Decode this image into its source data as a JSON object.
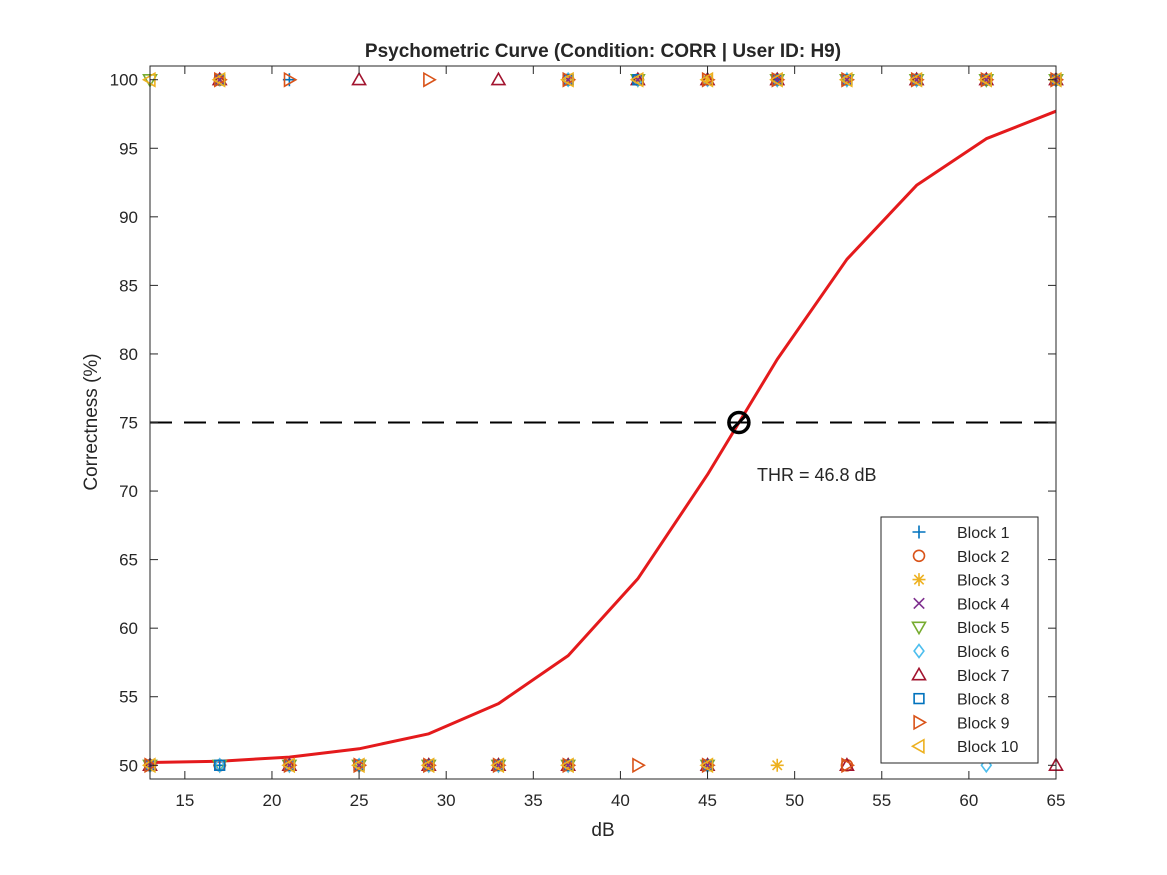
{
  "chart_data": {
    "type": "line",
    "title": "Psychometric Curve (Condition: CORR | User ID: H9)",
    "xlabel": "dB",
    "ylabel": "Correctness (%)",
    "xlim": [
      13,
      65
    ],
    "ylim": [
      49,
      101
    ],
    "xticks": [
      15,
      20,
      25,
      30,
      35,
      40,
      45,
      50,
      55,
      60,
      65
    ],
    "yticks": [
      50,
      55,
      60,
      65,
      70,
      75,
      80,
      85,
      90,
      95,
      100
    ],
    "grid": false,
    "legend_position": "bottom-right",
    "fit_curve": {
      "color": "#e41a1c",
      "x": [
        13,
        17,
        21,
        25,
        29,
        33,
        37,
        41,
        45,
        49,
        53,
        57,
        61,
        65
      ],
      "y": [
        50.2,
        50.3,
        50.6,
        51.2,
        52.3,
        54.5,
        58.0,
        63.6,
        71.2,
        79.6,
        86.9,
        92.3,
        95.7,
        97.7
      ]
    },
    "threshold": {
      "level": 75,
      "x": 46.8,
      "label": "THR = 46.8 dB"
    },
    "series": [
      {
        "name": "Block 1",
        "marker": "plus",
        "color": "#0072bd",
        "points": [
          [
            13,
            50
          ],
          [
            17,
            100
          ],
          [
            17,
            50
          ],
          [
            21,
            100
          ],
          [
            21,
            50
          ],
          [
            25,
            50
          ],
          [
            29,
            50
          ],
          [
            33,
            50
          ],
          [
            37,
            100
          ],
          [
            37,
            50
          ],
          [
            41,
            100
          ],
          [
            45,
            50
          ],
          [
            49,
            100
          ],
          [
            53,
            100
          ],
          [
            57,
            100
          ],
          [
            61,
            100
          ],
          [
            65,
            100
          ]
        ]
      },
      {
        "name": "Block 2",
        "marker": "circle",
        "color": "#d95319",
        "points": [
          [
            13,
            50
          ],
          [
            17,
            100
          ],
          [
            17,
            50
          ],
          [
            21,
            50
          ],
          [
            25,
            50
          ],
          [
            29,
            50
          ],
          [
            33,
            50
          ],
          [
            37,
            100
          ],
          [
            37,
            50
          ],
          [
            41,
            100
          ],
          [
            45,
            50
          ],
          [
            49,
            100
          ],
          [
            53,
            50
          ],
          [
            57,
            100
          ],
          [
            61,
            100
          ],
          [
            65,
            100
          ]
        ]
      },
      {
        "name": "Block 3",
        "marker": "asterisk",
        "color": "#edb120",
        "points": [
          [
            13,
            50
          ],
          [
            17,
            100
          ],
          [
            21,
            50
          ],
          [
            25,
            50
          ],
          [
            29,
            50
          ],
          [
            33,
            50
          ],
          [
            37,
            100
          ],
          [
            37,
            50
          ],
          [
            41,
            100
          ],
          [
            45,
            100
          ],
          [
            45,
            50
          ],
          [
            49,
            50
          ],
          [
            53,
            100
          ],
          [
            57,
            100
          ],
          [
            61,
            100
          ],
          [
            65,
            100
          ]
        ]
      },
      {
        "name": "Block 4",
        "marker": "x",
        "color": "#7e2f8e",
        "points": [
          [
            13,
            50
          ],
          [
            17,
            100
          ],
          [
            21,
            50
          ],
          [
            25,
            50
          ],
          [
            29,
            50
          ],
          [
            33,
            50
          ],
          [
            37,
            100
          ],
          [
            37,
            50
          ],
          [
            41,
            100
          ],
          [
            45,
            50
          ],
          [
            49,
            100
          ],
          [
            53,
            100
          ],
          [
            57,
            100
          ],
          [
            61,
            100
          ],
          [
            65,
            100
          ]
        ]
      },
      {
        "name": "Block 5",
        "marker": "triangle-down",
        "color": "#77ac30",
        "points": [
          [
            13,
            100
          ],
          [
            13,
            50
          ],
          [
            17,
            50
          ],
          [
            21,
            50
          ],
          [
            25,
            50
          ],
          [
            29,
            50
          ],
          [
            33,
            50
          ],
          [
            37,
            50
          ],
          [
            41,
            100
          ],
          [
            45,
            50
          ],
          [
            49,
            100
          ],
          [
            53,
            100
          ],
          [
            57,
            100
          ],
          [
            61,
            100
          ],
          [
            65,
            100
          ]
        ]
      },
      {
        "name": "Block 6",
        "marker": "diamond",
        "color": "#4dbeee",
        "points": [
          [
            13,
            50
          ],
          [
            17,
            50
          ],
          [
            21,
            50
          ],
          [
            25,
            50
          ],
          [
            29,
            50
          ],
          [
            33,
            50
          ],
          [
            37,
            100
          ],
          [
            37,
            50
          ],
          [
            41,
            100
          ],
          [
            45,
            100
          ],
          [
            45,
            50
          ],
          [
            49,
            100
          ],
          [
            53,
            100
          ],
          [
            57,
            100
          ],
          [
            61,
            50
          ],
          [
            65,
            100
          ]
        ]
      },
      {
        "name": "Block 7",
        "marker": "triangle-up",
        "color": "#a2142f",
        "points": [
          [
            13,
            50
          ],
          [
            17,
            100
          ],
          [
            21,
            50
          ],
          [
            25,
            100
          ],
          [
            29,
            50
          ],
          [
            33,
            100
          ],
          [
            33,
            50
          ],
          [
            37,
            50
          ],
          [
            41,
            100
          ],
          [
            45,
            100
          ],
          [
            45,
            50
          ],
          [
            49,
            100
          ],
          [
            53,
            50
          ],
          [
            57,
            100
          ],
          [
            61,
            100
          ],
          [
            65,
            100
          ],
          [
            65,
            50
          ]
        ]
      },
      {
        "name": "Block 8",
        "marker": "square",
        "color": "#0072bd",
        "points": [
          [
            13,
            50
          ],
          [
            17,
            100
          ],
          [
            17,
            50
          ],
          [
            21,
            50
          ],
          [
            25,
            50
          ],
          [
            29,
            50
          ],
          [
            33,
            50
          ],
          [
            37,
            100
          ],
          [
            37,
            50
          ],
          [
            41,
            100
          ],
          [
            45,
            50
          ],
          [
            49,
            100
          ],
          [
            53,
            100
          ],
          [
            57,
            100
          ],
          [
            61,
            100
          ],
          [
            65,
            100
          ]
        ]
      },
      {
        "name": "Block 9",
        "marker": "triangle-right",
        "color": "#d95319",
        "points": [
          [
            13,
            50
          ],
          [
            17,
            100
          ],
          [
            21,
            100
          ],
          [
            21,
            50
          ],
          [
            25,
            50
          ],
          [
            29,
            100
          ],
          [
            29,
            50
          ],
          [
            33,
            50
          ],
          [
            37,
            100
          ],
          [
            37,
            50
          ],
          [
            41,
            50
          ],
          [
            45,
            100
          ],
          [
            45,
            50
          ],
          [
            49,
            100
          ],
          [
            53,
            100
          ],
          [
            53,
            50
          ],
          [
            57,
            100
          ],
          [
            61,
            100
          ],
          [
            65,
            100
          ]
        ]
      },
      {
        "name": "Block 10",
        "marker": "triangle-left",
        "color": "#edb120",
        "points": [
          [
            13,
            100
          ],
          [
            13,
            50
          ],
          [
            17,
            100
          ],
          [
            21,
            50
          ],
          [
            25,
            50
          ],
          [
            29,
            50
          ],
          [
            33,
            50
          ],
          [
            37,
            100
          ],
          [
            37,
            50
          ],
          [
            41,
            100
          ],
          [
            45,
            100
          ],
          [
            45,
            50
          ],
          [
            49,
            100
          ],
          [
            53,
            100
          ],
          [
            57,
            100
          ],
          [
            61,
            100
          ],
          [
            65,
            100
          ]
        ]
      }
    ]
  }
}
